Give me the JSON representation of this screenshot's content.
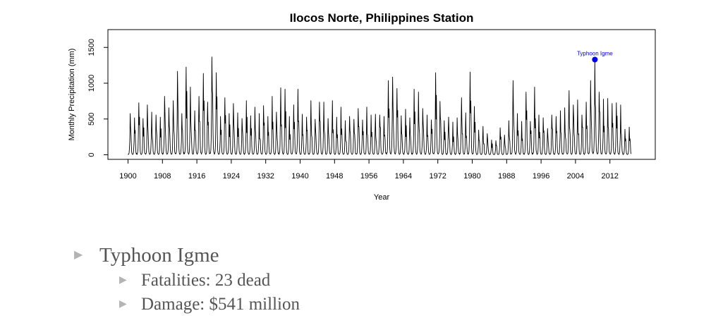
{
  "chart_data": {
    "type": "line",
    "title": "Ilocos Norte, Philippines Station",
    "xlabel": "Year",
    "ylabel": "Monthly Precipitation (mm)",
    "xlim": [
      1896,
      2020
    ],
    "ylim": [
      -30,
      1730
    ],
    "x_ticks": [
      "1900",
      "1908",
      "1916",
      "1924",
      "1932",
      "1940",
      "1948",
      "1956",
      "1964",
      "1972",
      "1980",
      "1988",
      "1996",
      "2004",
      "2012"
    ],
    "y_ticks": [
      "0",
      "500",
      "1000",
      "1500"
    ],
    "series": [
      {
        "values_note_x": "year",
        "peaks": [
          [
            1900.6,
            580
          ],
          [
            1901.6,
            520
          ],
          [
            1902.6,
            730
          ],
          [
            1903.6,
            510
          ],
          [
            1904.6,
            700
          ],
          [
            1905.6,
            600
          ],
          [
            1906.6,
            560
          ],
          [
            1907.6,
            530
          ],
          [
            1908.6,
            820
          ],
          [
            1909.6,
            660
          ],
          [
            1910.6,
            760
          ],
          [
            1911.6,
            1170
          ],
          [
            1912.6,
            580
          ],
          [
            1913.6,
            1230
          ],
          [
            1914.6,
            950
          ],
          [
            1915.6,
            620
          ],
          [
            1916.6,
            820
          ],
          [
            1917.6,
            1140
          ],
          [
            1918.6,
            740
          ],
          [
            1919.6,
            1370
          ],
          [
            1920.6,
            1150
          ],
          [
            1921.6,
            540
          ],
          [
            1922.6,
            800
          ],
          [
            1923.6,
            580
          ],
          [
            1924.6,
            720
          ],
          [
            1925.6,
            590
          ],
          [
            1926.6,
            510
          ],
          [
            1927.6,
            760
          ],
          [
            1928.6,
            550
          ],
          [
            1929.6,
            670
          ],
          [
            1930.6,
            580
          ],
          [
            1931.6,
            690
          ],
          [
            1932.6,
            540
          ],
          [
            1933.6,
            820
          ],
          [
            1934.6,
            600
          ],
          [
            1935.6,
            940
          ],
          [
            1936.6,
            920
          ],
          [
            1937.6,
            540
          ],
          [
            1938.6,
            700
          ],
          [
            1939.6,
            920
          ],
          [
            1940.6,
            570
          ],
          [
            1941.6,
            530
          ],
          [
            1942.6,
            760
          ],
          [
            1943.6,
            500
          ],
          [
            1944.6,
            740
          ],
          [
            1945.6,
            740
          ],
          [
            1946.6,
            510
          ],
          [
            1947.6,
            760
          ],
          [
            1948.6,
            530
          ],
          [
            1949.6,
            670
          ],
          [
            1950.6,
            480
          ],
          [
            1951.6,
            540
          ],
          [
            1952.6,
            500
          ],
          [
            1953.6,
            650
          ],
          [
            1954.6,
            490
          ],
          [
            1955.6,
            670
          ],
          [
            1956.6,
            560
          ],
          [
            1957.6,
            570
          ],
          [
            1958.6,
            560
          ],
          [
            1959.6,
            540
          ],
          [
            1960.6,
            1040
          ],
          [
            1961.6,
            1090
          ],
          [
            1962.6,
            930
          ],
          [
            1963.6,
            550
          ],
          [
            1964.6,
            640
          ],
          [
            1965.6,
            520
          ],
          [
            1966.6,
            920
          ],
          [
            1967.6,
            880
          ],
          [
            1968.6,
            650
          ],
          [
            1969.6,
            560
          ],
          [
            1970.6,
            490
          ],
          [
            1971.6,
            1150
          ],
          [
            1972.6,
            750
          ],
          [
            1973.6,
            480
          ],
          [
            1974.6,
            530
          ],
          [
            1975.6,
            460
          ],
          [
            1976.6,
            520
          ],
          [
            1977.6,
            800
          ],
          [
            1978.6,
            590
          ],
          [
            1979.6,
            1160
          ],
          [
            1980.6,
            680
          ],
          [
            1981.6,
            350
          ],
          [
            1982.6,
            400
          ],
          [
            1983.6,
            300
          ],
          [
            1984.6,
            210
          ],
          [
            1985.6,
            200
          ],
          [
            1986.6,
            380
          ],
          [
            1987.6,
            280
          ],
          [
            1988.6,
            480
          ],
          [
            1989.6,
            1040
          ],
          [
            1990.6,
            580
          ],
          [
            1991.6,
            470
          ],
          [
            1992.6,
            880
          ],
          [
            1993.6,
            470
          ],
          [
            1994.6,
            950
          ],
          [
            1995.6,
            560
          ],
          [
            1996.6,
            520
          ],
          [
            1997.6,
            370
          ],
          [
            1998.6,
            560
          ],
          [
            1999.6,
            540
          ],
          [
            2000.6,
            620
          ],
          [
            2001.6,
            660
          ],
          [
            2002.6,
            900
          ],
          [
            2003.6,
            700
          ],
          [
            2004.6,
            770
          ],
          [
            2005.6,
            560
          ],
          [
            2006.6,
            740
          ],
          [
            2007.6,
            1040
          ],
          [
            2008.6,
            1330
          ],
          [
            2009.6,
            880
          ],
          [
            2010.6,
            780
          ],
          [
            2011.6,
            790
          ],
          [
            2012.6,
            720
          ],
          [
            2013.6,
            730
          ],
          [
            2014.6,
            700
          ],
          [
            2015.6,
            360
          ],
          [
            2016.6,
            390
          ]
        ]
      }
    ],
    "annotation": {
      "label": "Typhoon Igme",
      "x": 2008.5,
      "y": 1330,
      "color": "#0000ee"
    }
  },
  "bullets": {
    "main": "Typhoon Igme",
    "sub": [
      "Fatalities: 23 dead",
      "Damage: $541 million"
    ]
  }
}
